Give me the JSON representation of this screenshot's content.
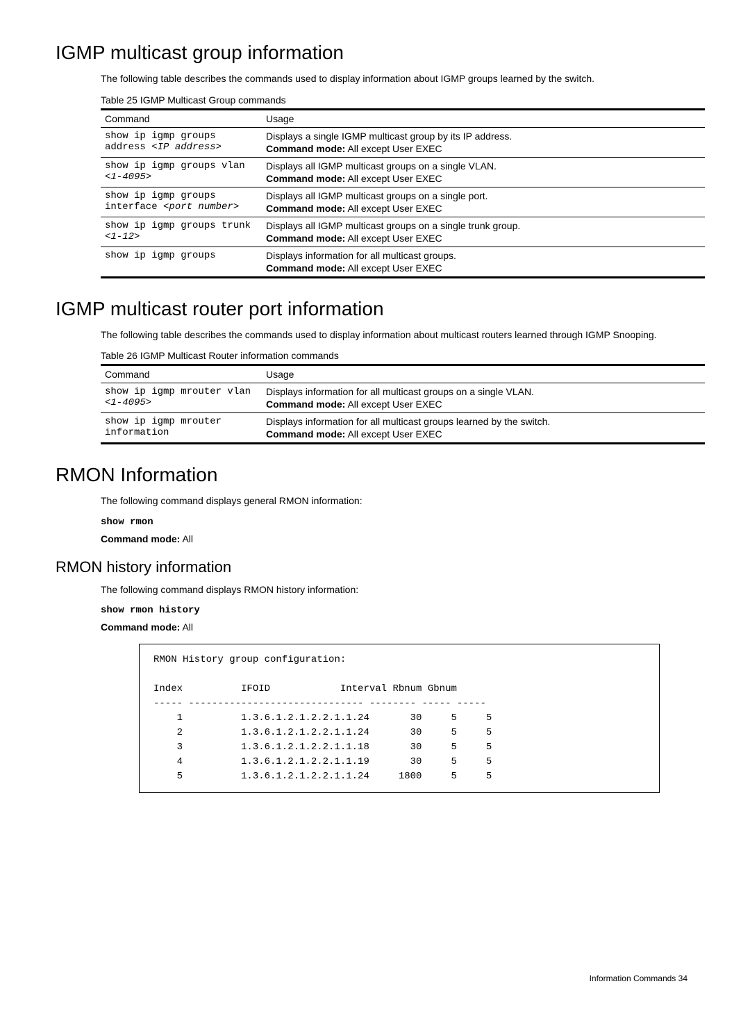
{
  "section1": {
    "title": "IGMP multicast group information",
    "intro": "The following table describes the commands used to display information about IGMP groups learned by the switch.",
    "table_caption": "Table 25  IGMP Multicast Group commands",
    "headers": {
      "command": "Command",
      "usage": "Usage"
    },
    "rows": [
      {
        "cmd_plain": "show ip igmp groups address ",
        "cmd_italic": "<IP address>",
        "usage_desc": "Displays a single IGMP multicast group by its IP address.",
        "mode_label": "Command mode:",
        "mode_value": " All except User EXEC"
      },
      {
        "cmd_plain": "show ip igmp groups vlan ",
        "cmd_italic": "<1-4095>",
        "usage_desc": "Displays all IGMP multicast groups on a single VLAN.",
        "mode_label": "Command mode:",
        "mode_value": " All except User EXEC"
      },
      {
        "cmd_plain": "show ip igmp groups interface ",
        "cmd_italic": "<port number>",
        "usage_desc": "Displays all IGMP multicast groups on a single port.",
        "mode_label": "Command mode:",
        "mode_value": " All except User EXEC"
      },
      {
        "cmd_plain": "show ip igmp groups trunk ",
        "cmd_italic": "<1-12>",
        "usage_desc": "Displays all IGMP multicast groups on a single trunk group.",
        "mode_label": "Command mode:",
        "mode_value": " All except User EXEC"
      },
      {
        "cmd_plain": "show ip igmp groups",
        "cmd_italic": "",
        "usage_desc": "Displays information for all multicast groups.",
        "mode_label": "Command mode:",
        "mode_value": " All except User EXEC"
      }
    ]
  },
  "section2": {
    "title": "IGMP multicast router port information",
    "intro": "The following table describes the commands used to display information about multicast routers learned through IGMP Snooping.",
    "table_caption": "Table 26  IGMP Multicast Router information commands",
    "headers": {
      "command": "Command",
      "usage": "Usage"
    },
    "rows": [
      {
        "cmd_plain": "show ip igmp mrouter vlan ",
        "cmd_italic": "<1-4095>",
        "usage_desc": "Displays information for all multicast groups on a single VLAN.",
        "mode_label": "Command mode:",
        "mode_value": " All except User EXEC"
      },
      {
        "cmd_plain": "show ip igmp mrouter information",
        "cmd_italic": "",
        "usage_desc": "Displays information for all multicast groups learned by the switch.",
        "mode_label": "Command mode:",
        "mode_value": " All except User EXEC"
      }
    ]
  },
  "section3": {
    "title": "RMON Information",
    "intro": "The following command displays general RMON information:",
    "command": "show rmon",
    "mode_label": "Command mode:",
    "mode_value": " All"
  },
  "section4": {
    "title": "RMON history information",
    "intro": "The following command displays RMON history information:",
    "command": "show rmon history",
    "mode_label": "Command mode:",
    "mode_value": " All",
    "output": "RMON History group configuration:\n\nIndex          IFOID            Interval Rbnum Gbnum\n----- ------------------------------ -------- ----- -----\n    1          1.3.6.1.2.1.2.2.1.1.24       30     5     5\n    2          1.3.6.1.2.1.2.2.1.1.24       30     5     5\n    3          1.3.6.1.2.1.2.2.1.1.18       30     5     5\n    4          1.3.6.1.2.1.2.2.1.1.19       30     5     5\n    5          1.3.6.1.2.1.2.2.1.1.24     1800     5     5"
  },
  "footer": {
    "text": "Information Commands   34"
  }
}
